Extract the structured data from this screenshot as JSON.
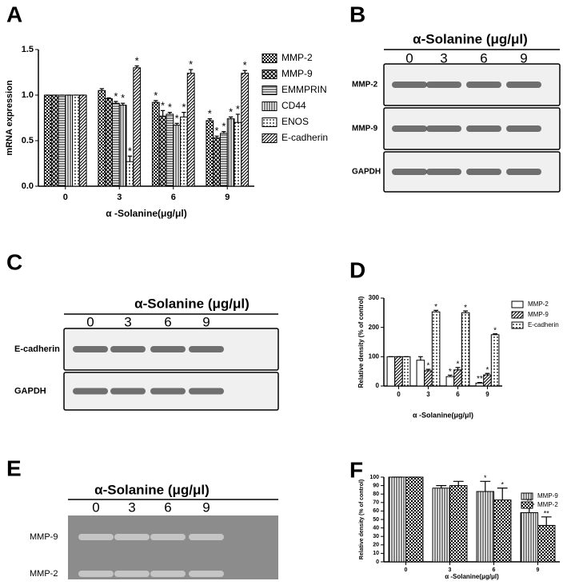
{
  "chart_data": [
    {
      "type": "bar",
      "panel": "A",
      "ylabel": "mRNA expression",
      "xlabel": "α -Solanine(μg/μl)",
      "categories": [
        "0",
        "3",
        "6",
        "9"
      ],
      "ylim": [
        0,
        1.5
      ],
      "yticks": [
        {
          "value": 0,
          "label": "0.0"
        },
        0.5,
        {
          "value": 1,
          "label": "1.0"
        },
        1.5
      ],
      "series": [
        {
          "name": "MMP-2",
          "pattern": "checker",
          "values": [
            1,
            1.05,
            0.92,
            0.72
          ],
          "errors": [
            0,
            0.02,
            0.02,
            0.02
          ],
          "marks": [
            null,
            null,
            "*",
            "*"
          ]
        },
        {
          "name": "MMP-9",
          "pattern": "cross",
          "values": [
            1,
            0.96,
            0.77,
            0.53
          ],
          "errors": [
            0,
            0.01,
            0.06,
            0.02
          ],
          "marks": [
            null,
            null,
            "*",
            "*"
          ]
        },
        {
          "name": "EMMPRIN",
          "pattern": "hline",
          "values": [
            1,
            0.91,
            0.79,
            0.58
          ],
          "errors": [
            0,
            0.02,
            0.02,
            0.02
          ],
          "marks": [
            null,
            "*",
            "*",
            "*"
          ]
        },
        {
          "name": "CD44",
          "pattern": "vline",
          "values": [
            1,
            0.89,
            0.67,
            0.74
          ],
          "errors": [
            0,
            0.02,
            0.02,
            0.02
          ],
          "marks": [
            null,
            "*",
            "*",
            "*"
          ]
        },
        {
          "name": "ENOS",
          "pattern": "dot",
          "values": [
            1,
            0.27,
            0.76,
            0.7
          ],
          "errors": [
            0,
            0.06,
            0.05,
            0.09
          ],
          "marks": [
            null,
            "*",
            "*",
            "*"
          ]
        },
        {
          "name": "E-cadherin",
          "pattern": "diag",
          "values": [
            1,
            1.3,
            1.24,
            1.24
          ],
          "errors": [
            0,
            0.02,
            0.04,
            0.03
          ],
          "marks": [
            null,
            "*",
            "*",
            "*"
          ]
        }
      ]
    },
    {
      "type": "bar",
      "panel": "D",
      "ylabel": "Relative density (% of control)",
      "xlabel": "α -Solanine(μg/μl)",
      "categories": [
        "0",
        "3",
        "6",
        "9"
      ],
      "ylim": [
        0,
        300
      ],
      "yticks": [
        0,
        100,
        200,
        300
      ],
      "series": [
        {
          "name": "MMP-2",
          "pattern": "white",
          "values": [
            100,
            88,
            32,
            10
          ],
          "errors": [
            0,
            12,
            5,
            2
          ],
          "marks": [
            null,
            null,
            "*",
            "**"
          ]
        },
        {
          "name": "MMP-9",
          "pattern": "diag",
          "values": [
            100,
            52,
            55,
            38
          ],
          "errors": [
            0,
            5,
            8,
            5
          ],
          "marks": [
            null,
            "*",
            "*",
            "*"
          ]
        },
        {
          "name": "E-cadherin",
          "pattern": "dot",
          "values": [
            100,
            253,
            250,
            175
          ],
          "errors": [
            0,
            5,
            6,
            3
          ],
          "marks": [
            null,
            "*",
            "*",
            "*"
          ]
        }
      ]
    },
    {
      "type": "bar",
      "panel": "F",
      "ylabel": "Relative density (% of control)",
      "xlabel": "α -Solanine(μg/μl)",
      "categories": [
        "0",
        "3",
        "6",
        "9"
      ],
      "ylim": [
        0,
        100
      ],
      "yticks": [
        0,
        10,
        20,
        30,
        40,
        50,
        60,
        70,
        80,
        90,
        100
      ],
      "series": [
        {
          "name": "MMP-9",
          "pattern": "vline",
          "values": [
            100,
            87,
            83,
            58
          ],
          "errors": [
            0,
            3,
            12,
            10
          ],
          "marks": [
            null,
            null,
            "*",
            "**"
          ]
        },
        {
          "name": "MMP-2",
          "pattern": "checker",
          "values": [
            100,
            90,
            73,
            43
          ],
          "errors": [
            0,
            5,
            14,
            10
          ],
          "marks": [
            null,
            null,
            "*",
            "**"
          ]
        }
      ]
    }
  ],
  "blots": [
    {
      "panel": "B",
      "header": "α-Solanine (μg/μl)",
      "lanes": [
        "0",
        "3",
        "6",
        "9"
      ],
      "rows": [
        "MMP-2",
        "MMP-9",
        "GAPDH"
      ]
    },
    {
      "panel": "C",
      "header": "α-Solanine (μg/μl)",
      "lanes": [
        "0",
        "3",
        "6",
        "9"
      ],
      "rows": [
        "E-cadherin",
        "GAPDH"
      ]
    },
    {
      "panel": "E",
      "header": "α-Solanine (μg/μl)",
      "lanes": [
        "0",
        "3",
        "6",
        "9"
      ],
      "rows": [
        "MMP-9",
        "MMP-2"
      ]
    }
  ]
}
